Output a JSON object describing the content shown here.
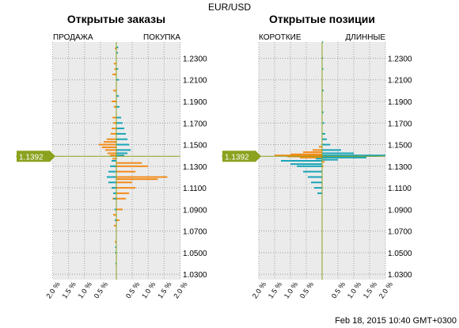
{
  "header": {
    "symbol": "EUR/USD",
    "timestamp": "Feb 18, 2015 10:40 GMT+0300",
    "price_label": "1.1392"
  },
  "colors": {
    "sell": "#f28c1a",
    "buy": "#1aa5b8",
    "marker": "#8aa21e",
    "panel_bg": "#ebebeb",
    "grid": "#a0a0a0"
  },
  "chart_data": [
    {
      "type": "bar",
      "orientation": "horizontal-diverging",
      "title": "Открытые заказы",
      "left_label": "ПРОДАЖА",
      "right_label": "ПОКУПКА",
      "x_ticks": [
        "2.0 %",
        "1.5 %",
        "1.0 %",
        "0.5 %",
        "0.5 %",
        "1.0 %",
        "1.5 %",
        "2.0 %"
      ],
      "y_ticks": [
        "1.2300",
        "1.2100",
        "1.1900",
        "1.1700",
        "1.1500",
        "1.1300",
        "1.1100",
        "1.0900",
        "1.0700",
        "1.0500",
        "1.0300"
      ],
      "xlim": [
        -2.0,
        2.0
      ],
      "ylim": [
        1.025,
        1.245
      ],
      "current_price": 1.1392,
      "series": [
        {
          "name": "ПРОДАЖА",
          "color": "#f28c1a",
          "points": [
            [
              1.239,
              0.05
            ],
            [
              1.225,
              0.08
            ],
            [
              1.22,
              0.06
            ],
            [
              1.215,
              0.12
            ],
            [
              1.2,
              0.1
            ],
            [
              1.19,
              0.15
            ],
            [
              1.185,
              0.08
            ],
            [
              1.175,
              0.12
            ],
            [
              1.17,
              0.1
            ],
            [
              1.165,
              0.15
            ],
            [
              1.16,
              0.18
            ],
            [
              1.155,
              0.3
            ],
            [
              1.1525,
              0.4
            ],
            [
              1.15,
              0.55
            ],
            [
              1.1475,
              0.45
            ],
            [
              1.145,
              0.35
            ],
            [
              1.142,
              0.28
            ],
            [
              1.14,
              0.2
            ],
            [
              1.137,
              0.12
            ],
            [
              1.13,
              0.08
            ],
            [
              1.12,
              0.1
            ],
            [
              1.11,
              0.15
            ],
            [
              1.1,
              0.12
            ],
            [
              1.085,
              0.1
            ],
            [
              1.075,
              0.08
            ],
            [
              1.06,
              0.05
            ]
          ]
        },
        {
          "name": "ПОКУПКА",
          "color": "#f28c1a",
          "points": [
            [
              1.133,
              0.8
            ],
            [
              1.13,
              1.0
            ],
            [
              1.125,
              0.6
            ],
            [
              1.12,
              1.6
            ],
            [
              1.118,
              1.3
            ],
            [
              1.115,
              0.5
            ],
            [
              1.11,
              0.6
            ],
            [
              1.105,
              0.4
            ],
            [
              1.1,
              0.3
            ],
            [
              1.09,
              0.2
            ],
            [
              1.08,
              0.1
            ]
          ]
        },
        {
          "name": "ПРОДАЖА",
          "color": "#1aa5b8",
          "points": [
            [
              1.135,
              0.15
            ],
            [
              1.13,
              0.2
            ],
            [
              1.125,
              0.25
            ],
            [
              1.12,
              0.3
            ],
            [
              1.115,
              0.25
            ],
            [
              1.11,
              0.15
            ],
            [
              1.105,
              0.1
            ],
            [
              1.1,
              0.08
            ],
            [
              1.09,
              0.06
            ],
            [
              1.08,
              0.05
            ],
            [
              1.055,
              0.04
            ],
            [
              1.05,
              0.04
            ],
            [
              1.04,
              0.03
            ]
          ]
        },
        {
          "name": "ПОКУПКА",
          "color": "#1aa5b8",
          "points": [
            [
              1.24,
              0.06
            ],
            [
              1.235,
              0.05
            ],
            [
              1.22,
              0.06
            ],
            [
              1.21,
              0.08
            ],
            [
              1.195,
              0.08
            ],
            [
              1.185,
              0.1
            ],
            [
              1.175,
              0.15
            ],
            [
              1.17,
              0.2
            ],
            [
              1.165,
              0.25
            ],
            [
              1.16,
              0.3
            ],
            [
              1.155,
              0.35
            ],
            [
              1.15,
              0.4
            ],
            [
              1.145,
              0.45
            ],
            [
              1.142,
              0.35
            ],
            [
              1.14,
              0.25
            ]
          ]
        }
      ]
    },
    {
      "type": "bar",
      "orientation": "horizontal-diverging",
      "title": "Открытые позиции",
      "left_label": "КОРОТКИЕ",
      "right_label": "ДЛИННЫЕ",
      "x_ticks": [
        "2.0 %",
        "1.5 %",
        "1.0 %",
        "0.5 %",
        "0.5 %",
        "1.0 %",
        "1.5 %",
        "2.0 %"
      ],
      "y_ticks": [
        "1.2300",
        "1.2100",
        "1.1900",
        "1.1700",
        "1.1500",
        "1.1300",
        "1.1100",
        "1.0900",
        "1.0700",
        "1.0500",
        "1.0300"
      ],
      "xlim": [
        -2.0,
        2.0
      ],
      "ylim": [
        1.025,
        1.245
      ],
      "current_price": 1.1392,
      "series": [
        {
          "name": "КОРОТКИЕ",
          "color": "#f28c1a",
          "points": [
            [
              1.148,
              0.1
            ],
            [
              1.145,
              0.3
            ],
            [
              1.143,
              0.6
            ],
            [
              1.141,
              1.0
            ],
            [
              1.14,
              1.5
            ],
            [
              1.139,
              1.1
            ],
            [
              1.138,
              0.7
            ]
          ]
        },
        {
          "name": "ДЛИННЫЕ",
          "color": "#f28c1a",
          "points": [
            [
              1.138,
              0.15
            ],
            [
              1.136,
              0.12
            ],
            [
              1.134,
              0.08
            ],
            [
              1.13,
              0.05
            ]
          ]
        },
        {
          "name": "КОРОТКИЕ",
          "color": "#1aa5b8",
          "points": [
            [
              1.137,
              0.2
            ],
            [
              1.135,
              1.3
            ],
            [
              1.132,
              1.0
            ],
            [
              1.13,
              0.8
            ],
            [
              1.125,
              0.6
            ],
            [
              1.12,
              0.45
            ],
            [
              1.115,
              0.35
            ],
            [
              1.11,
              0.25
            ],
            [
              1.105,
              0.15
            ]
          ]
        },
        {
          "name": "ДЛИННЫЕ",
          "color": "#1aa5b8",
          "points": [
            [
              1.245,
              0.03
            ],
            [
              1.23,
              0.03
            ],
            [
              1.22,
              0.04
            ],
            [
              1.2,
              0.05
            ],
            [
              1.18,
              0.05
            ],
            [
              1.17,
              0.07
            ],
            [
              1.16,
              0.1
            ],
            [
              1.155,
              0.15
            ],
            [
              1.15,
              0.25
            ],
            [
              1.145,
              0.6
            ],
            [
              1.142,
              1.0
            ],
            [
              1.14,
              2.0
            ],
            [
              1.1395,
              1.8
            ],
            [
              1.138,
              1.4
            ],
            [
              1.136,
              0.5
            ]
          ]
        }
      ]
    }
  ]
}
